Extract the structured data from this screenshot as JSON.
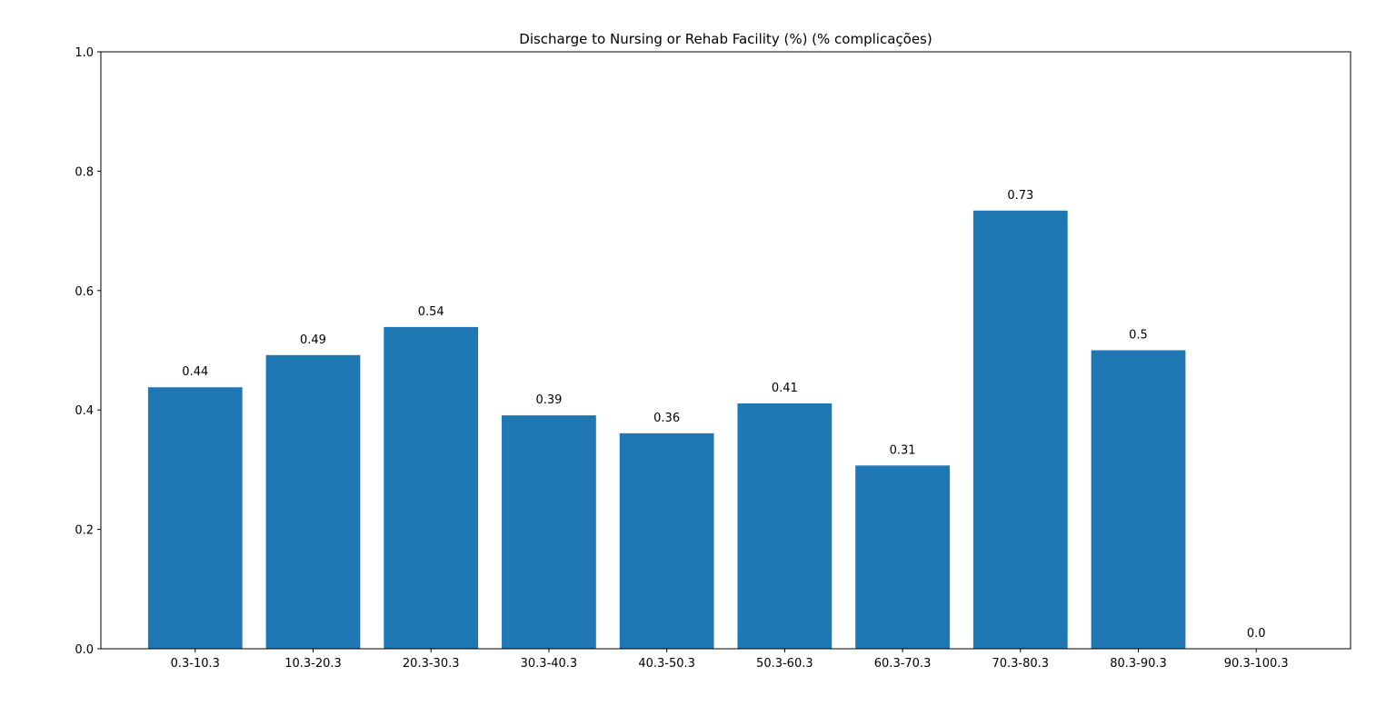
{
  "chart_data": {
    "type": "bar",
    "title": "Discharge to Nursing or Rehab Facility (%) (% complicações)",
    "xlabel": "",
    "ylabel": "",
    "categories": [
      "0.3-10.3",
      "10.3-20.3",
      "20.3-30.3",
      "30.3-40.3",
      "40.3-50.3",
      "50.3-60.3",
      "60.3-70.3",
      "70.3-80.3",
      "80.3-90.3",
      "90.3-100.3"
    ],
    "values": [
      0.438,
      0.492,
      0.539,
      0.391,
      0.361,
      0.411,
      0.307,
      0.734,
      0.5,
      0.0
    ],
    "value_labels": [
      "0.44",
      "0.49",
      "0.54",
      "0.39",
      "0.36",
      "0.41",
      "0.31",
      "0.73",
      "0.5",
      "0.0"
    ],
    "ylim": [
      0,
      1.0
    ],
    "yticks": [
      0.0,
      0.2,
      0.4,
      0.6,
      0.8,
      1.0
    ],
    "ytick_labels": [
      "0.0",
      "0.2",
      "0.4",
      "0.6",
      "0.8",
      "1.0"
    ],
    "grid": false,
    "bar_color": "#1f77b4"
  }
}
